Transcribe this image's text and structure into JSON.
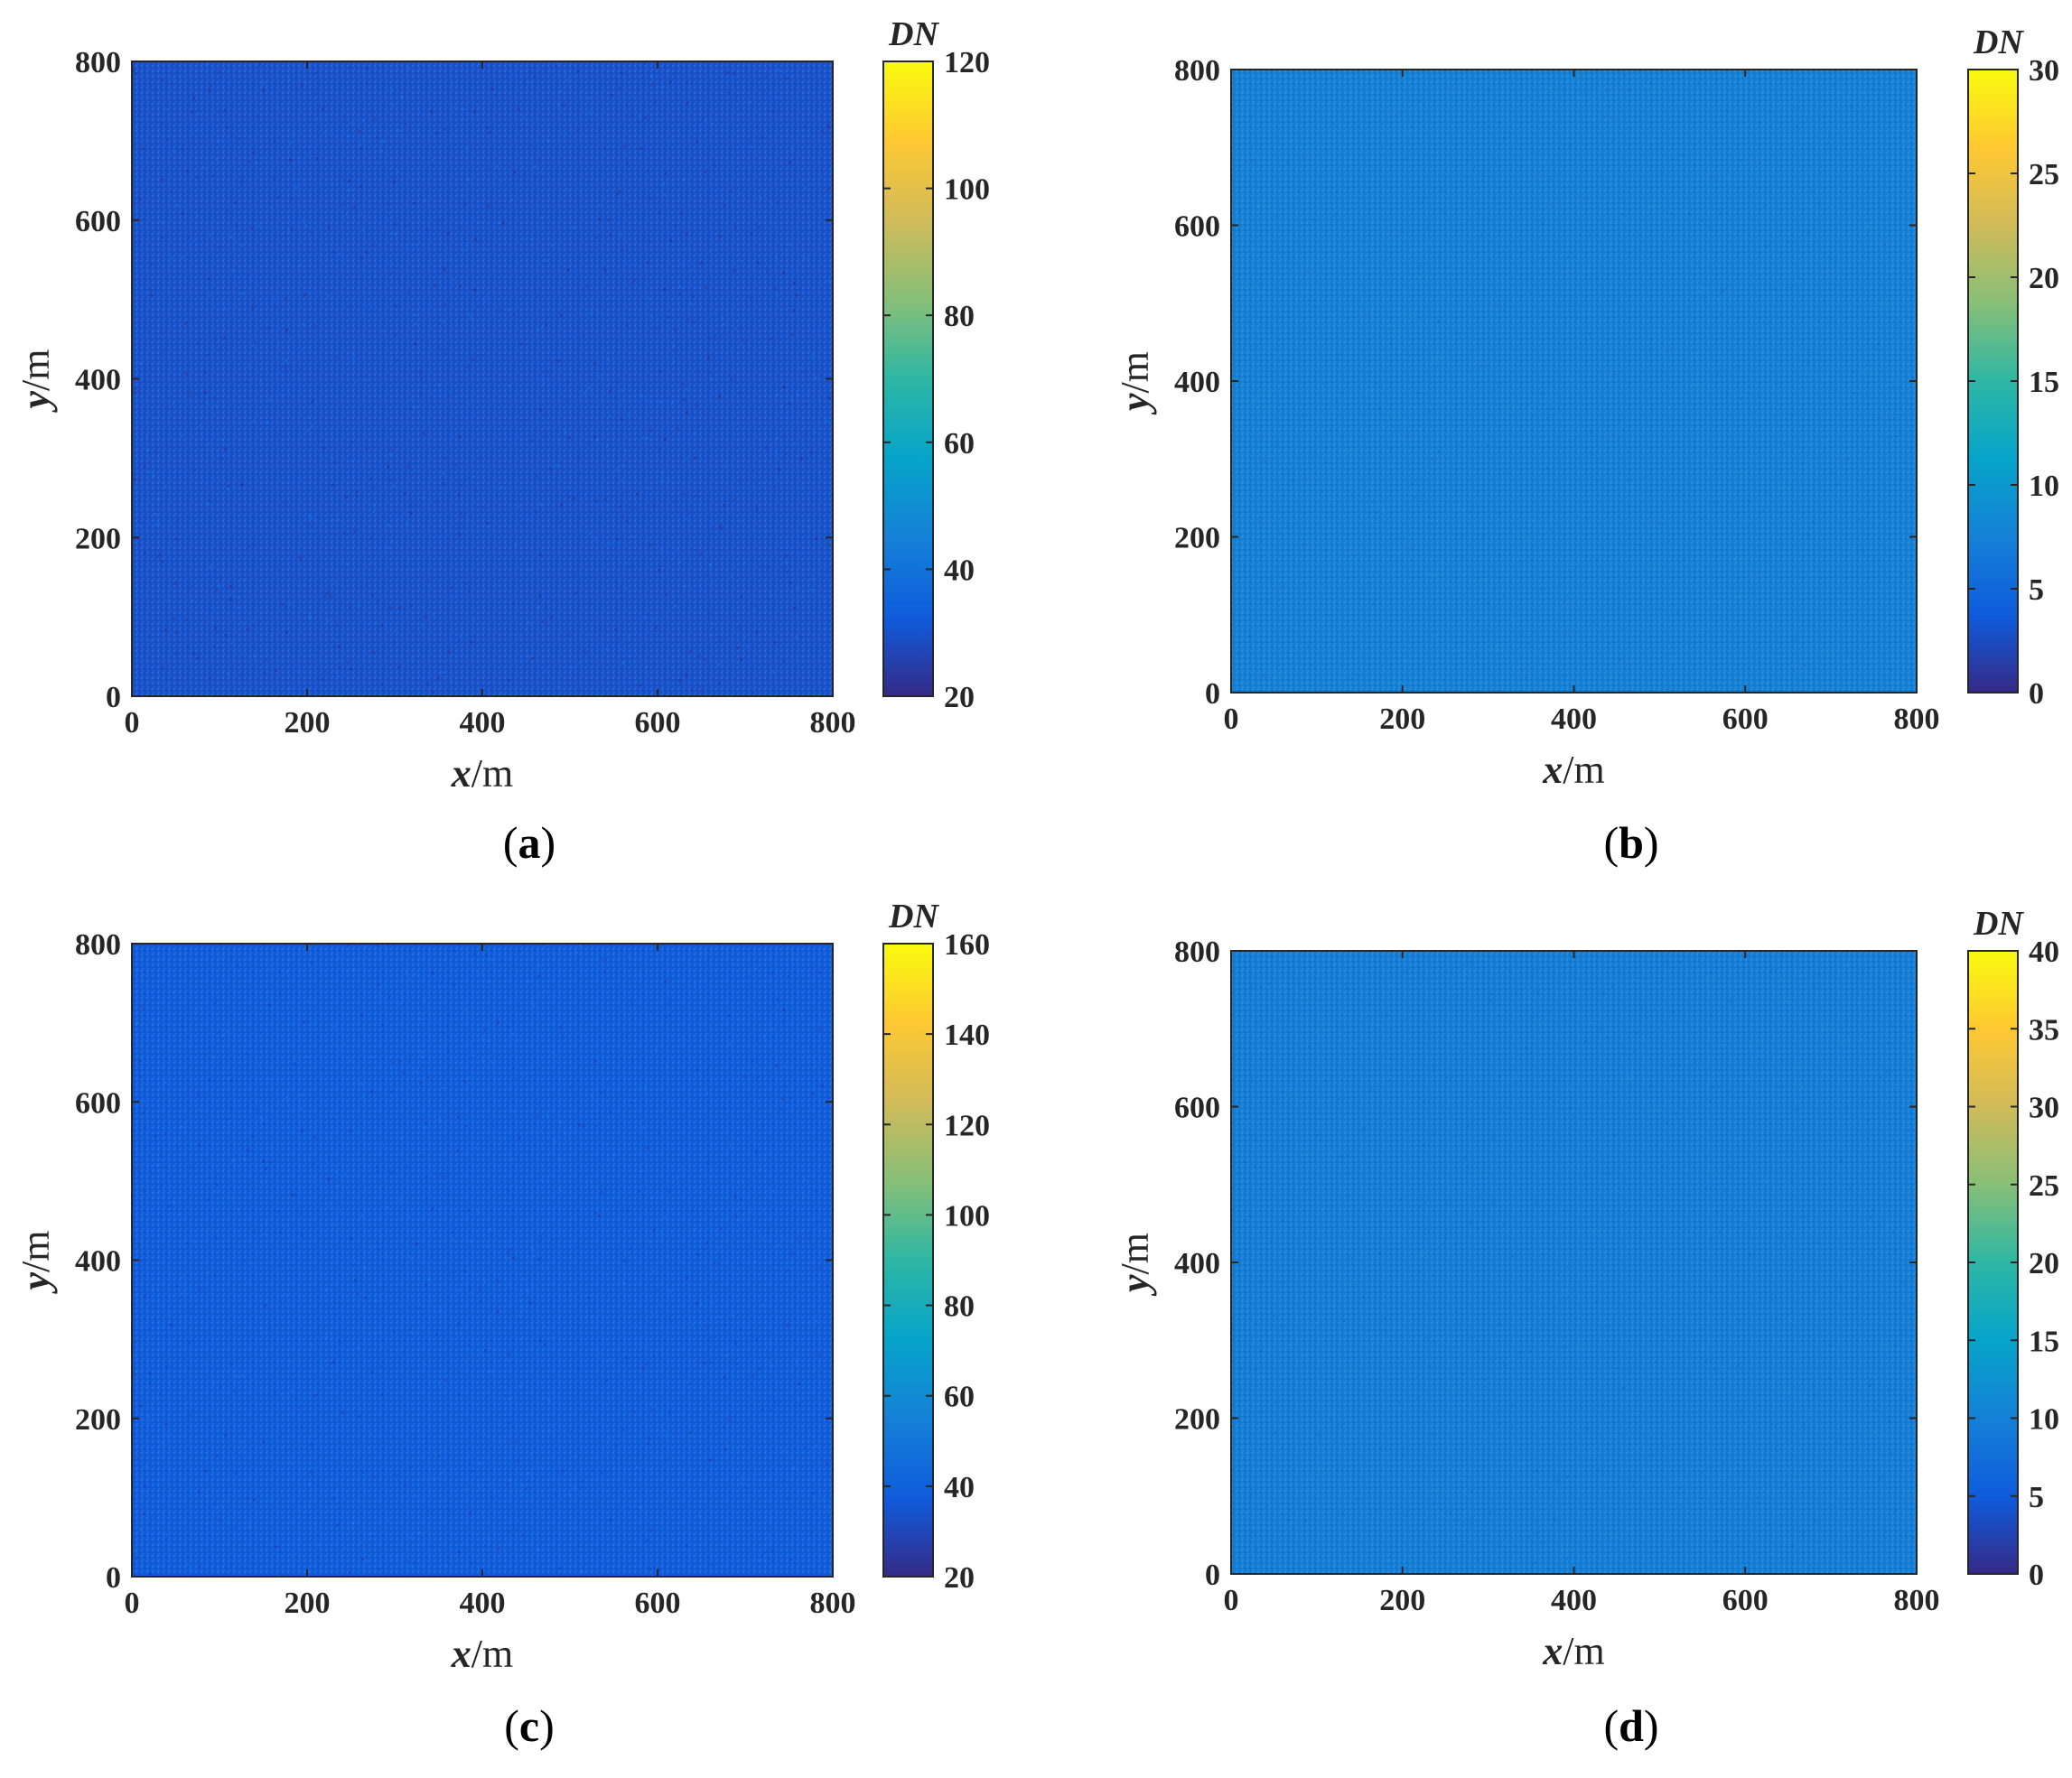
{
  "chart_data": [
    {
      "panel_label": "a",
      "type": "heatmap",
      "xlabel_var": "x",
      "xlabel_unit": "/m",
      "ylabel_var": "y",
      "ylabel_unit": "/m",
      "xlim": [
        0,
        800
      ],
      "ylim": [
        0,
        800
      ],
      "xticks": [
        "0",
        "200",
        "400",
        "600",
        "800"
      ],
      "yticks": [
        "0",
        "200",
        "400",
        "600",
        "800"
      ],
      "colorbar": {
        "title": "DN",
        "range": [
          20,
          120
        ],
        "ticks": [
          "20",
          "40",
          "60",
          "80",
          "100",
          "120"
        ]
      },
      "field": {
        "description": "uniform noise",
        "mean_value": 30,
        "spread": 4
      },
      "colormap": "parula"
    },
    {
      "panel_label": "b",
      "type": "heatmap",
      "xlabel_var": "x",
      "xlabel_unit": "/m",
      "ylabel_var": "y",
      "ylabel_unit": "/m",
      "xlim": [
        0,
        800
      ],
      "ylim": [
        0,
        800
      ],
      "xticks": [
        "0",
        "200",
        "400",
        "600",
        "800"
      ],
      "yticks": [
        "0",
        "200",
        "400",
        "600",
        "800"
      ],
      "colorbar": {
        "title": "DN",
        "range": [
          0,
          30
        ],
        "ticks": [
          "0",
          "5",
          "10",
          "15",
          "20",
          "25",
          "30"
        ]
      },
      "field": {
        "description": "uniform noise",
        "mean_value": 7.5,
        "spread": 0.8
      },
      "colormap": "parula"
    },
    {
      "panel_label": "c",
      "type": "heatmap",
      "xlabel_var": "x",
      "xlabel_unit": "/m",
      "ylabel_var": "y",
      "ylabel_unit": "/m",
      "xlim": [
        0,
        800
      ],
      "ylim": [
        0,
        800
      ],
      "xticks": [
        "0",
        "200",
        "400",
        "600",
        "800"
      ],
      "yticks": [
        "0",
        "200",
        "400",
        "600",
        "800"
      ],
      "colorbar": {
        "title": "DN",
        "range": [
          20,
          160
        ],
        "ticks": [
          "20",
          "40",
          "60",
          "80",
          "100",
          "120",
          "140",
          "160"
        ]
      },
      "field": {
        "description": "uniform noise",
        "mean_value": 38,
        "spread": 5
      },
      "colormap": "parula"
    },
    {
      "panel_label": "d",
      "type": "heatmap",
      "xlabel_var": "x",
      "xlabel_unit": "/m",
      "ylabel_var": "y",
      "ylabel_unit": "/m",
      "xlim": [
        0,
        800
      ],
      "ylim": [
        0,
        800
      ],
      "xticks": [
        "0",
        "200",
        "400",
        "600",
        "800"
      ],
      "yticks": [
        "0",
        "200",
        "400",
        "600",
        "800"
      ],
      "colorbar": {
        "title": "DN",
        "range": [
          0,
          40
        ],
        "ticks": [
          "0",
          "5",
          "10",
          "15",
          "20",
          "25",
          "30",
          "35",
          "40"
        ]
      },
      "field": {
        "description": "uniform noise",
        "mean_value": 9.5,
        "spread": 1
      },
      "colormap": "parula"
    }
  ],
  "colors": {
    "parula": [
      "#352a87",
      "#0f5cdd",
      "#1481d6",
      "#06a4ca",
      "#2eb7a4",
      "#87bf77",
      "#d1bb59",
      "#fec832",
      "#f9fb0e"
    ]
  }
}
